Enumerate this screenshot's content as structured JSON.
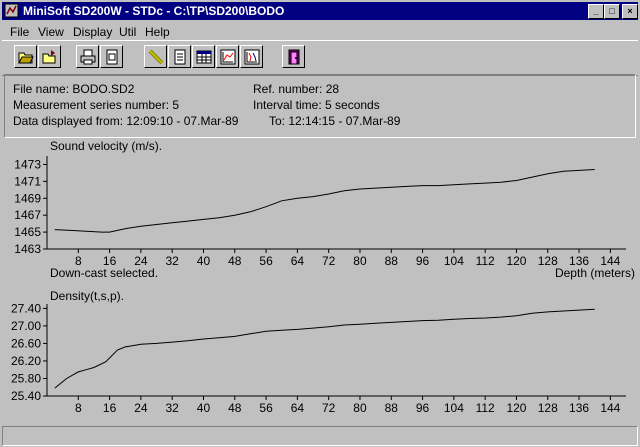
{
  "window": {
    "title": "MiniSoft SD200W - STDc - C:\\TP\\SD200\\BODO",
    "minimize": "_",
    "maximize": "□",
    "close": "×"
  },
  "menu": [
    "File",
    "View",
    "Display",
    "Util",
    "Help"
  ],
  "info": {
    "file_name": "File name: BODO.SD2",
    "ref_number": "Ref. number: 28",
    "series_number": "Measurement series number: 5",
    "interval_time": "Interval time: 5 seconds",
    "displayed_from": "Data displayed from: 12:09:10 - 07.Mar-89",
    "displayed_to": "To: 12:14:15 - 07.Mar-89"
  },
  "status_text": "Down-cast selected.",
  "chart_data": [
    {
      "type": "line",
      "title": "Sound velocity (m/s).",
      "xlabel": "Depth (meters)",
      "xlim": [
        0,
        148
      ],
      "ylim": [
        1463,
        1474
      ],
      "xticks": [
        8,
        16,
        24,
        32,
        40,
        48,
        56,
        64,
        72,
        80,
        88,
        96,
        104,
        112,
        120,
        128,
        136,
        144
      ],
      "yticks": [
        "1473",
        "1471",
        "1469",
        "1467",
        "1465",
        "1463"
      ],
      "ytick_values": [
        1473,
        1471,
        1469,
        1467,
        1465,
        1463
      ],
      "x": [
        2,
        6,
        10,
        14,
        16,
        18,
        20,
        24,
        28,
        32,
        36,
        40,
        44,
        48,
        52,
        56,
        60,
        64,
        68,
        72,
        76,
        80,
        84,
        88,
        92,
        96,
        100,
        104,
        108,
        112,
        116,
        120,
        124,
        128,
        132,
        136,
        140
      ],
      "y": [
        1465.3,
        1465.2,
        1465.1,
        1465.0,
        1465.0,
        1465.2,
        1465.4,
        1465.7,
        1465.9,
        1466.1,
        1466.3,
        1466.5,
        1466.7,
        1467.0,
        1467.4,
        1468.0,
        1468.7,
        1469.0,
        1469.2,
        1469.5,
        1469.9,
        1470.1,
        1470.2,
        1470.3,
        1470.4,
        1470.5,
        1470.5,
        1470.6,
        1470.7,
        1470.8,
        1470.9,
        1471.1,
        1471.5,
        1471.9,
        1472.2,
        1472.3,
        1472.4
      ],
      "color": "#000000"
    },
    {
      "type": "line",
      "title": "Density(t,s,p).",
      "xlim": [
        0,
        148
      ],
      "ylim": [
        25.4,
        27.5
      ],
      "xticks": [
        8,
        16,
        24,
        32,
        40,
        48,
        56,
        64,
        72,
        80,
        88,
        96,
        104,
        112,
        120,
        128,
        136,
        144
      ],
      "yticks": [
        "27.40",
        "27.00",
        "26.60",
        "26.20",
        "25.80",
        "25.40"
      ],
      "ytick_values": [
        27.4,
        27.0,
        26.6,
        26.2,
        25.8,
        25.4
      ],
      "x": [
        2,
        5,
        8,
        10,
        12,
        15,
        18,
        20,
        22,
        24,
        28,
        32,
        36,
        40,
        44,
        48,
        52,
        56,
        60,
        64,
        68,
        72,
        76,
        80,
        84,
        88,
        92,
        96,
        100,
        104,
        108,
        112,
        116,
        120,
        124,
        128,
        132,
        136,
        140
      ],
      "y": [
        25.58,
        25.8,
        25.95,
        26.0,
        26.05,
        26.18,
        26.45,
        26.52,
        26.55,
        26.58,
        26.6,
        26.63,
        26.66,
        26.7,
        26.73,
        26.76,
        26.82,
        26.88,
        26.9,
        26.92,
        26.95,
        26.98,
        27.02,
        27.04,
        27.06,
        27.08,
        27.1,
        27.12,
        27.13,
        27.15,
        27.17,
        27.18,
        27.2,
        27.23,
        27.29,
        27.32,
        27.34,
        27.36,
        27.38
      ],
      "color": "#000000"
    }
  ]
}
